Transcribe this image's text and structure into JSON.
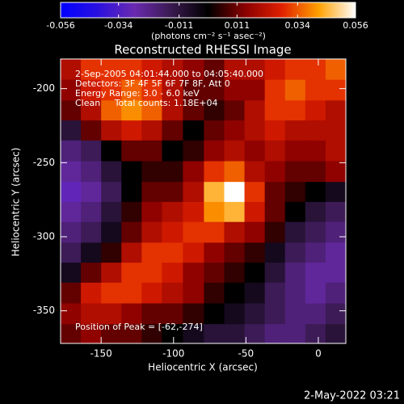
{
  "chart_data": {
    "type": "heatmap",
    "title": "Reconstructed RHESSI Image",
    "x_label": "Heliocentric X (arcsec)",
    "y_label": "Heliocentric Y (arcsec)",
    "colorbar_label": "(photons cm⁻² s⁻¹ asec⁻²)",
    "annotations": [
      "2-Sep-2005 04:01:44.000 to 04:05:40.000",
      "Detectors: 3F 4F 5F 6F 7F 8F, Att 0",
      "Energy Range: 3.0 - 6.0 keV",
      "Clean     Total counts: 1.18E+04"
    ],
    "peak_note": "Position of Peak = [-62,-274]",
    "footer": "2-May-2022 03:21",
    "xlim": [
      -178,
      19
    ],
    "ylim": [
      -372,
      -180
    ],
    "xticks": [
      -150,
      -100,
      -50,
      0
    ],
    "yticks": [
      -200,
      -250,
      -300,
      -350
    ],
    "zlim": [
      -0.056,
      0.056
    ],
    "zticks": [
      -0.056,
      -0.034,
      -0.011,
      0.011,
      0.034,
      0.056
    ],
    "colormap": [
      "#0000ff",
      "#2a10e0",
      "#6a2ab0",
      "#3a1a50",
      "#000000",
      "#8a0000",
      "#e02000",
      "#ffa000",
      "#ffffff"
    ],
    "x": [
      -171,
      -157,
      -143,
      -129,
      -115,
      -101,
      -86,
      -72,
      -58,
      -44,
      -30,
      -16,
      -2,
      12
    ],
    "y": [
      -187,
      -201,
      -215,
      -228,
      -242,
      -256,
      -270,
      -283,
      -297,
      -311,
      -324,
      -338,
      -352,
      -366
    ],
    "z": [
      [
        0.02,
        0.03,
        0.03,
        0.03,
        0.025,
        0.02,
        0.015,
        0.01,
        0.02,
        0.02,
        0.025,
        0.03,
        0.03,
        0.035
      ],
      [
        0.015,
        0.025,
        0.03,
        0.035,
        0.03,
        0.02,
        0.01,
        0.01,
        0.015,
        0.015,
        0.03,
        0.035,
        0.03,
        0.03
      ],
      [
        0.01,
        0.02,
        0.035,
        0.04,
        0.035,
        0.02,
        0.01,
        0.005,
        0.01,
        0.02,
        0.03,
        0.03,
        0.025,
        0.02
      ],
      [
        -0.01,
        0.01,
        0.02,
        0.025,
        0.02,
        0.01,
        0.0,
        0.01,
        0.015,
        0.02,
        0.025,
        0.02,
        0.02,
        0.02
      ],
      [
        -0.02,
        -0.015,
        0.0,
        0.01,
        0.01,
        0.0,
        0.005,
        0.015,
        0.02,
        0.015,
        0.02,
        0.015,
        0.015,
        0.02
      ],
      [
        -0.025,
        -0.02,
        -0.01,
        0.0,
        0.005,
        0.005,
        0.015,
        0.03,
        0.035,
        0.02,
        0.015,
        0.01,
        0.01,
        0.015
      ],
      [
        -0.03,
        -0.025,
        -0.015,
        0.0,
        0.01,
        0.01,
        0.02,
        0.045,
        0.056,
        0.03,
        0.01,
        0.005,
        0.0,
        -0.005
      ],
      [
        -0.025,
        -0.02,
        -0.01,
        0.005,
        0.015,
        0.02,
        0.025,
        0.04,
        0.045,
        0.025,
        0.01,
        0.0,
        -0.01,
        -0.015
      ],
      [
        -0.02,
        -0.015,
        -0.005,
        0.01,
        0.02,
        0.025,
        0.03,
        0.03,
        0.02,
        0.015,
        0.005,
        -0.01,
        -0.015,
        -0.02
      ],
      [
        -0.015,
        -0.005,
        0.005,
        0.02,
        0.03,
        0.03,
        0.025,
        0.015,
        0.01,
        0.005,
        -0.005,
        -0.015,
        -0.02,
        -0.025
      ],
      [
        -0.005,
        0.01,
        0.02,
        0.03,
        0.03,
        0.025,
        0.015,
        0.01,
        0.005,
        0.0,
        -0.01,
        -0.02,
        -0.025,
        -0.025
      ],
      [
        0.01,
        0.025,
        0.03,
        0.03,
        0.025,
        0.02,
        0.015,
        0.005,
        0.0,
        -0.005,
        -0.015,
        -0.02,
        -0.025,
        -0.02
      ],
      [
        0.015,
        0.02,
        0.02,
        0.015,
        0.01,
        0.01,
        0.005,
        0.0,
        -0.005,
        -0.01,
        -0.015,
        -0.02,
        -0.02,
        -0.015
      ],
      [
        0.01,
        0.015,
        0.01,
        0.01,
        0.005,
        0.0,
        -0.005,
        -0.01,
        -0.01,
        -0.015,
        -0.02,
        -0.02,
        -0.015,
        -0.01
      ]
    ]
  }
}
